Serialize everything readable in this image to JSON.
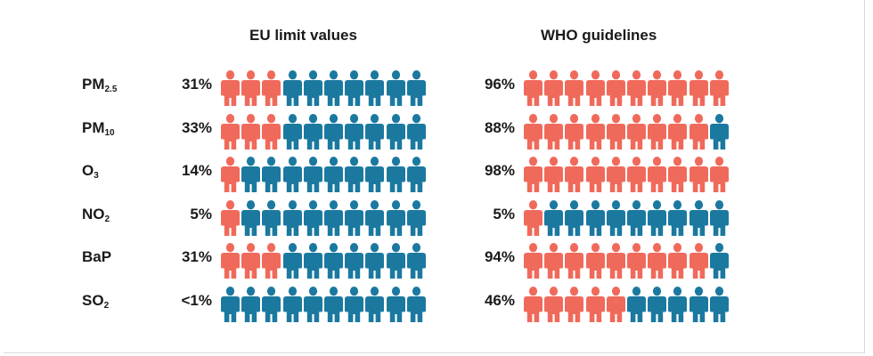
{
  "chart_data": {
    "type": "pictogram",
    "icons_per_row": 10,
    "colors": {
      "exposed": "#f06a5b",
      "not_exposed": "#1b79a0"
    },
    "columns": [
      {
        "key": "eu",
        "title": "EU limit values"
      },
      {
        "key": "who",
        "title": "WHO guidelines"
      }
    ],
    "rows": [
      {
        "pollutant": "PM",
        "subscript": "2.5",
        "eu": {
          "label": "31%",
          "value": 31,
          "icons_red": 3
        },
        "who": {
          "label": "96%",
          "value": 96,
          "icons_red": 10
        }
      },
      {
        "pollutant": "PM",
        "subscript": "10",
        "eu": {
          "label": "33%",
          "value": 33,
          "icons_red": 3
        },
        "who": {
          "label": "88%",
          "value": 88,
          "icons_red": 9
        }
      },
      {
        "pollutant": "O",
        "subscript": "3",
        "eu": {
          "label": "14%",
          "value": 14,
          "icons_red": 1
        },
        "who": {
          "label": "98%",
          "value": 98,
          "icons_red": 10
        }
      },
      {
        "pollutant": "NO",
        "subscript": "2",
        "eu": {
          "label": "5%",
          "value": 5,
          "icons_red": 1
        },
        "who": {
          "label": "5%",
          "value": 5,
          "icons_red": 1
        }
      },
      {
        "pollutant": "BaP",
        "subscript": "",
        "eu": {
          "label": "31%",
          "value": 31,
          "icons_red": 3
        },
        "who": {
          "label": "94%",
          "value": 94,
          "icons_red": 9
        }
      },
      {
        "pollutant": "SO",
        "subscript": "2",
        "eu": {
          "label": "<1%",
          "value": 1,
          "icons_red": 0
        },
        "who": {
          "label": "46%",
          "value": 46,
          "icons_red": 5
        }
      }
    ]
  }
}
